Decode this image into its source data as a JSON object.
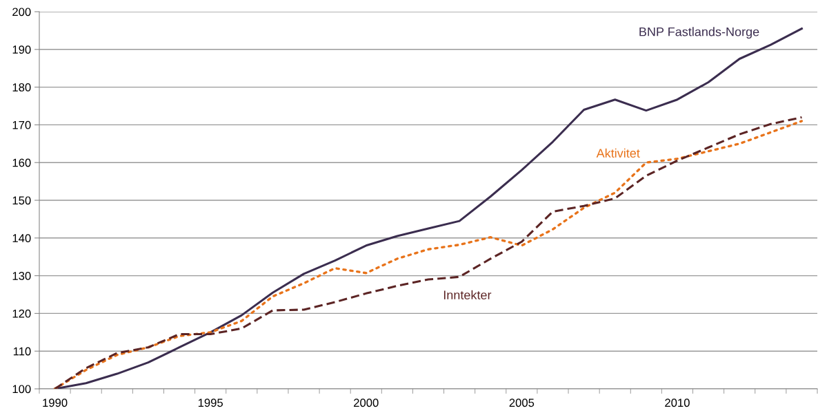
{
  "chart_data": {
    "type": "line",
    "categories": [
      "1990",
      null,
      null,
      null,
      null,
      "1995",
      null,
      null,
      null,
      null,
      "2000",
      null,
      null,
      null,
      null,
      "2005",
      null,
      null,
      null,
      null,
      "2010",
      null,
      null,
      null,
      null
    ],
    "series": [
      {
        "name": "BNP Fastlands-Norge",
        "color": "#3b2d4f",
        "line_style": "solid",
        "values": [
          100,
          101.5,
          104,
          107,
          111,
          115,
          119.5,
          125.5,
          130.5,
          134,
          138,
          140.5,
          142.5,
          144.5,
          151,
          158,
          165.5,
          174,
          176.7,
          173.8,
          176.7,
          181.3,
          187.5,
          191.2,
          195.5
        ]
      },
      {
        "name": "Aktivitet",
        "color": "#e8731a",
        "line_style": "dotted",
        "values": [
          100,
          105,
          109,
          111,
          114,
          115,
          118,
          124.5,
          128,
          132,
          130.7,
          134.5,
          137,
          138.2,
          140.2,
          138,
          142.3,
          148,
          152,
          160,
          161,
          163,
          165,
          168,
          171
        ]
      },
      {
        "name": "Inntekter",
        "color": "#5c2424",
        "line_style": "dashed",
        "values": [
          100,
          105.5,
          109.5,
          111,
          114.5,
          114.5,
          116,
          120.8,
          121,
          123,
          125.3,
          127.3,
          129,
          129.7,
          134.5,
          139,
          147,
          148.5,
          150.5,
          156.5,
          160.5,
          164,
          167.5,
          170.2,
          172
        ]
      }
    ],
    "ylim": [
      100,
      200
    ],
    "yticks": [
      100,
      110,
      120,
      130,
      140,
      150,
      160,
      170,
      180,
      190,
      200
    ],
    "grid": "y",
    "legend": false,
    "marker": "none"
  }
}
